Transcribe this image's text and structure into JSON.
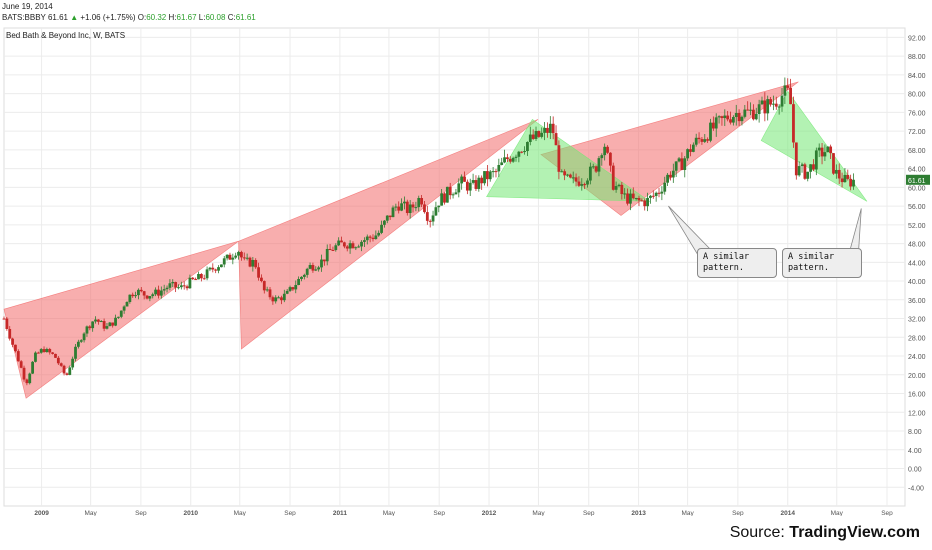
{
  "header": {
    "date": "June 19, 2014",
    "symbol": "BATS:BBBY",
    "last": "61.61",
    "change_arrow": "▲",
    "change": "+1.06 (+1.75%)",
    "o_label": "O:",
    "o_value": "60.32",
    "h_label": "H:",
    "h_value": "61.67",
    "l_label": "L:",
    "l_value": "60.08",
    "c_label": "C:",
    "c_value": "61.61"
  },
  "colors": {
    "candle_up": "#2e7d32",
    "candle_down": "#c62828",
    "red_wedge": "#f26b6b",
    "green_wedge": "#74e874",
    "grid": "#ececec",
    "last_price_tag": "#2e7d32"
  },
  "chart_data": {
    "type": "candlestick",
    "title": "Bed Bath & Beyond Inc, W, BATS",
    "timeframe": "W",
    "x_range": [
      "2008-10-01",
      "2014-10-15"
    ],
    "ylim": [
      -8,
      94
    ],
    "y_ticks": [
      "92.00",
      "88.00",
      "84.00",
      "80.00",
      "76.00",
      "72.00",
      "68.00",
      "64.00",
      "60.00",
      "56.00",
      "52.00",
      "48.00",
      "44.00",
      "40.00",
      "36.00",
      "32.00",
      "28.00",
      "24.00",
      "20.00",
      "16.00",
      "12.00",
      "8.00",
      "4.00",
      "0.00",
      "-4.00"
    ],
    "x_ticks": [
      {
        "label": "2009",
        "date": "2009-01-01",
        "bold": true
      },
      {
        "label": "May",
        "date": "2009-05-01"
      },
      {
        "label": "Sep",
        "date": "2009-09-01"
      },
      {
        "label": "2010",
        "date": "2010-01-01",
        "bold": true
      },
      {
        "label": "May",
        "date": "2010-05-01"
      },
      {
        "label": "Sep",
        "date": "2010-09-01"
      },
      {
        "label": "2011",
        "date": "2011-01-01",
        "bold": true
      },
      {
        "label": "May",
        "date": "2011-05-01"
      },
      {
        "label": "Sep",
        "date": "2011-09-01"
      },
      {
        "label": "2012",
        "date": "2012-01-01",
        "bold": true
      },
      {
        "label": "May",
        "date": "2012-05-01"
      },
      {
        "label": "Sep",
        "date": "2012-09-01"
      },
      {
        "label": "2013",
        "date": "2013-01-01",
        "bold": true
      },
      {
        "label": "May",
        "date": "2013-05-01"
      },
      {
        "label": "Sep",
        "date": "2013-09-01"
      },
      {
        "label": "2014",
        "date": "2014-01-01",
        "bold": true
      },
      {
        "label": "May",
        "date": "2014-05-01"
      },
      {
        "label": "Sep",
        "date": "2014-09-01"
      }
    ],
    "last_price_label": "61.61",
    "last_price": 61.61,
    "price_path": [
      [
        "2008-10-01",
        32
      ],
      [
        "2008-10-20",
        27
      ],
      [
        "2008-11-10",
        22
      ],
      [
        "2008-11-24",
        18
      ],
      [
        "2008-12-15",
        24
      ],
      [
        "2009-01-05",
        25.5
      ],
      [
        "2009-02-02",
        24
      ],
      [
        "2009-03-02",
        19.5
      ],
      [
        "2009-03-23",
        25
      ],
      [
        "2009-04-13",
        29
      ],
      [
        "2009-05-11",
        32
      ],
      [
        "2009-06-08",
        30
      ],
      [
        "2009-07-06",
        32
      ],
      [
        "2009-07-27",
        36
      ],
      [
        "2009-08-17",
        38
      ],
      [
        "2009-09-14",
        37
      ],
      [
        "2009-10-12",
        37.5
      ],
      [
        "2009-11-09",
        39
      ],
      [
        "2009-12-07",
        38.5
      ],
      [
        "2010-01-04",
        40
      ],
      [
        "2010-02-01",
        41
      ],
      [
        "2010-03-01",
        43
      ],
      [
        "2010-04-05",
        45
      ],
      [
        "2010-04-26",
        47
      ],
      [
        "2010-05-10",
        44
      ],
      [
        "2010-06-07",
        44
      ],
      [
        "2010-06-28",
        38
      ],
      [
        "2010-07-26",
        36
      ],
      [
        "2010-08-23",
        37
      ],
      [
        "2010-09-20",
        40
      ],
      [
        "2010-10-18",
        43
      ],
      [
        "2010-11-15",
        44
      ],
      [
        "2010-12-13",
        47
      ],
      [
        "2011-01-10",
        48
      ],
      [
        "2011-02-07",
        48
      ],
      [
        "2011-03-07",
        49
      ],
      [
        "2011-04-04",
        50
      ],
      [
        "2011-05-02",
        54
      ],
      [
        "2011-05-23",
        56.5
      ],
      [
        "2011-06-20",
        55
      ],
      [
        "2011-07-18",
        58
      ],
      [
        "2011-08-08",
        53
      ],
      [
        "2011-08-29",
        57
      ],
      [
        "2011-09-26",
        59
      ],
      [
        "2011-10-24",
        61
      ],
      [
        "2011-11-21",
        60
      ],
      [
        "2011-12-19",
        62
      ],
      [
        "2012-01-16",
        63
      ],
      [
        "2012-02-13",
        66
      ],
      [
        "2012-03-12",
        68
      ],
      [
        "2012-04-09",
        70
      ],
      [
        "2012-05-07",
        71
      ],
      [
        "2012-06-04",
        73
      ],
      [
        "2012-06-25",
        62
      ],
      [
        "2012-07-23",
        61
      ],
      [
        "2012-08-20",
        62
      ],
      [
        "2012-09-17",
        64
      ],
      [
        "2012-10-08",
        70
      ],
      [
        "2012-10-29",
        61
      ],
      [
        "2012-11-26",
        58
      ],
      [
        "2012-12-24",
        57
      ],
      [
        "2013-01-21",
        57
      ],
      [
        "2013-02-18",
        59
      ],
      [
        "2013-03-18",
        63
      ],
      [
        "2013-04-15",
        65
      ],
      [
        "2013-05-13",
        69
      ],
      [
        "2013-06-10",
        71
      ],
      [
        "2013-07-08",
        73
      ],
      [
        "2013-08-05",
        75
      ],
      [
        "2013-09-02",
        76
      ],
      [
        "2013-09-30",
        76
      ],
      [
        "2013-10-28",
        77
      ],
      [
        "2013-11-25",
        78
      ],
      [
        "2013-12-23",
        80
      ],
      [
        "2014-01-06",
        80
      ],
      [
        "2014-01-20",
        64
      ],
      [
        "2014-02-17",
        63
      ],
      [
        "2014-03-17",
        67
      ],
      [
        "2014-04-07",
        68
      ],
      [
        "2014-04-28",
        63
      ],
      [
        "2014-05-26",
        61
      ],
      [
        "2014-06-16",
        61.61
      ]
    ],
    "annotations": {
      "red_wedges": [
        {
          "points": [
            [
              "2008-10-01",
              34
            ],
            [
              "2010-04-28",
              48.5
            ],
            [
              "2008-11-24",
              15
            ]
          ]
        },
        {
          "points": [
            [
              "2010-04-28",
              48.5
            ],
            [
              "2012-04-30",
              74.5
            ],
            [
              "2010-05-05",
              25.5
            ]
          ]
        },
        {
          "points": [
            [
              "2012-05-07",
              67
            ],
            [
              "2014-01-27",
              82.5
            ],
            [
              "2012-11-19",
              54
            ]
          ]
        }
      ],
      "green_wedges": [
        {
          "points": [
            [
              "2012-04-16",
              74.5
            ],
            [
              "2013-01-28",
              57
            ],
            [
              "2011-12-26",
              58
            ]
          ]
        },
        {
          "points": [
            [
              "2014-01-01",
              80.5
            ],
            [
              "2014-07-14",
              57
            ],
            [
              "2013-10-28",
              70
            ]
          ]
        }
      ],
      "callouts": [
        {
          "text": "A similar\npattern.",
          "anchor": [
            "2013-03-15",
            56
          ]
        },
        {
          "text": "A similar\npattern.",
          "anchor": [
            "2014-06-30",
            55.5
          ]
        }
      ]
    }
  },
  "footer": {
    "source_prefix": "Source: ",
    "source_name": "TradingView.com"
  }
}
